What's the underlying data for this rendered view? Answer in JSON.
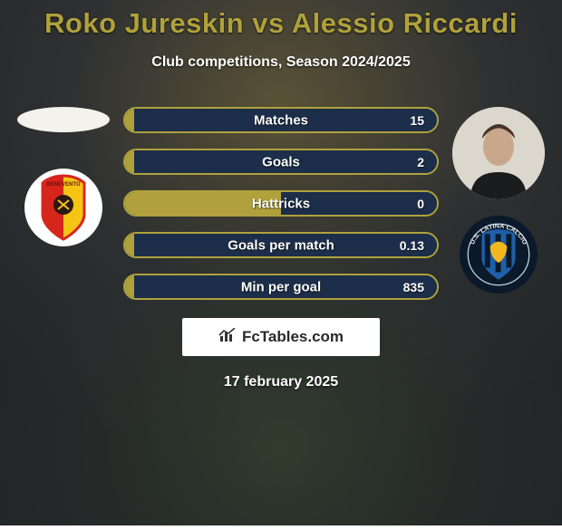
{
  "background": {
    "color": "#2e3236",
    "blur_accent_top": "#7c6a3a",
    "blur_accent_bottom": "#3a4a38"
  },
  "title": {
    "text": "Roko Jureskin vs Alessio Riccardi",
    "color": "#b0a13c",
    "fontsize": 31
  },
  "subtitle": {
    "text": "Club competitions, Season 2024/2025",
    "color": "#ffffff",
    "fontsize": 16
  },
  "players": {
    "left": {
      "name": "Roko Jureskin",
      "photo_placeholder": true,
      "club_badge": {
        "bg": "#ffffff",
        "stripes": [
          "#d6261c",
          "#f6c514"
        ],
        "label": "BENEVENTO"
      }
    },
    "right": {
      "name": "Alessio Riccardi",
      "photo_bg": "#d9d4cb",
      "club_badge": {
        "bg": "#0a1a2a",
        "inner": "#1e5fa8",
        "accent": "#f2b81f",
        "label": "U.S. LATINA CALCIO"
      }
    }
  },
  "bars": {
    "left_color": "#b0a13c",
    "right_color": "#1c2e4a",
    "border_color": "#b0a13c",
    "label_color": "#ffffff",
    "height": 29,
    "radius": 15,
    "items": [
      {
        "label": "Matches",
        "left_val": "",
        "right_val": "15",
        "left_pct": 3,
        "right_pct": 97
      },
      {
        "label": "Goals",
        "left_val": "",
        "right_val": "2",
        "left_pct": 3,
        "right_pct": 97
      },
      {
        "label": "Hattricks",
        "left_val": "",
        "right_val": "0",
        "left_pct": 50,
        "right_pct": 50
      },
      {
        "label": "Goals per match",
        "left_val": "",
        "right_val": "0.13",
        "left_pct": 3,
        "right_pct": 97
      },
      {
        "label": "Min per goal",
        "left_val": "",
        "right_val": "835",
        "left_pct": 3,
        "right_pct": 97
      }
    ]
  },
  "watermark": {
    "icon": "chart",
    "text": "FcTables.com",
    "bg": "#ffffff",
    "text_color": "#2a2a2a"
  },
  "date": {
    "text": "17 february 2025",
    "color": "#ffffff"
  }
}
